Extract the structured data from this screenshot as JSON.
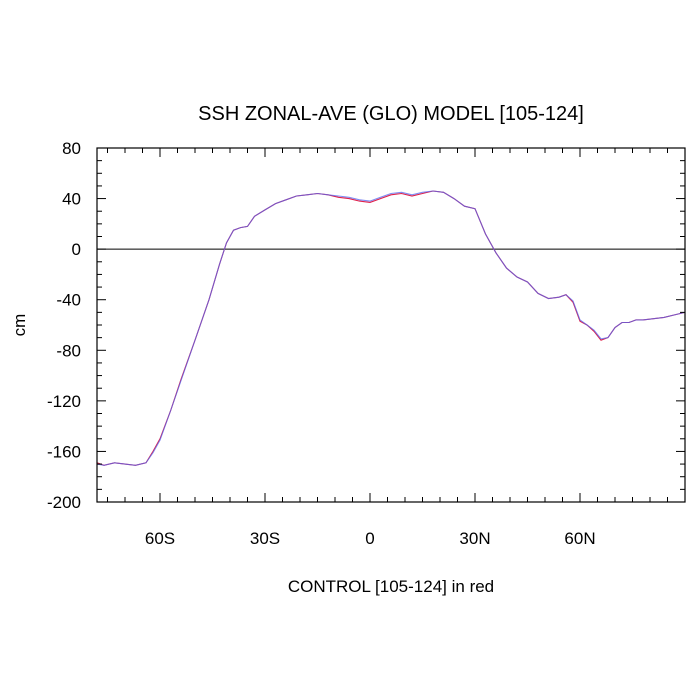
{
  "chart_data": {
    "type": "line",
    "title": "SSH ZONAL-AVE (GLO) MODEL [105-124]",
    "xlabel": "CONTROL [105-124] in red",
    "ylabel": "cm",
    "xlim": [
      -78,
      90
    ],
    "ylim": [
      -200,
      80
    ],
    "x_ticks": [
      {
        "value": -60,
        "label": "60S"
      },
      {
        "value": -30,
        "label": "30S"
      },
      {
        "value": 0,
        "label": "0"
      },
      {
        "value": 30,
        "label": "30N"
      },
      {
        "value": 60,
        "label": "60N"
      }
    ],
    "y_ticks": [
      {
        "value": 80,
        "label": "80"
      },
      {
        "value": 40,
        "label": "40"
      },
      {
        "value": 0,
        "label": "0"
      },
      {
        "value": -40,
        "label": "-40"
      },
      {
        "value": -80,
        "label": "-80"
      },
      {
        "value": -120,
        "label": "-120"
      },
      {
        "value": -160,
        "label": "-160"
      },
      {
        "value": -200,
        "label": "-200"
      }
    ],
    "zero_line": 0,
    "grid": false,
    "series": [
      {
        "color": "#e0204a",
        "x": [
          -78,
          -76,
          -73,
          -70,
          -67,
          -64,
          -62,
          -60,
          -57,
          -54,
          -50,
          -46,
          -43,
          -41,
          -39,
          -37,
          -35,
          -33,
          -30,
          -27,
          -24,
          -21,
          -18,
          -15,
          -12,
          -9,
          -6,
          -3,
          0,
          3,
          6,
          9,
          12,
          15,
          18,
          21,
          24,
          27,
          30,
          33,
          36,
          39,
          42,
          45,
          48,
          51,
          54,
          56,
          58,
          60,
          62,
          64,
          66,
          68,
          70,
          72,
          74,
          76,
          78,
          81,
          84,
          87,
          90
        ],
        "y": [
          -169,
          -171,
          -169,
          -170,
          -171,
          -169,
          -160,
          -150,
          -128,
          -103,
          -72,
          -40,
          -12,
          5,
          15,
          17,
          18,
          26,
          31,
          36,
          39,
          42,
          43,
          44,
          43,
          41,
          40,
          38,
          37,
          40,
          43,
          44,
          42,
          44,
          46,
          45,
          40,
          34,
          32,
          12,
          -3,
          -15,
          -22,
          -26,
          -35,
          -39,
          -38,
          -36,
          -42,
          -57,
          -60,
          -65,
          -72,
          -70,
          -62,
          -58,
          -58,
          -56,
          -56,
          -55,
          -54,
          -52,
          -50
        ]
      },
      {
        "color": "#5566ee",
        "x": [
          -78,
          -76,
          -73,
          -70,
          -67,
          -64,
          -62,
          -60,
          -57,
          -54,
          -50,
          -46,
          -43,
          -41,
          -39,
          -37,
          -35,
          -33,
          -30,
          -27,
          -24,
          -21,
          -18,
          -15,
          -12,
          -9,
          -6,
          -3,
          0,
          3,
          6,
          9,
          12,
          15,
          18,
          21,
          24,
          27,
          30,
          33,
          36,
          39,
          42,
          45,
          48,
          51,
          54,
          56,
          58,
          60,
          62,
          64,
          66,
          68,
          70,
          72,
          74,
          76,
          78,
          81,
          84,
          87,
          90
        ],
        "y": [
          -170,
          -171,
          -169,
          -170,
          -171,
          -169,
          -161,
          -151,
          -128,
          -104,
          -72,
          -40,
          -12,
          5,
          15,
          17,
          18,
          26,
          31,
          36,
          39,
          42,
          43,
          44,
          43,
          42,
          41,
          39,
          38,
          41,
          44,
          45,
          43,
          45,
          46,
          45,
          40,
          34,
          32,
          12,
          -3,
          -15,
          -22,
          -26,
          -35,
          -39,
          -38,
          -36,
          -41,
          -56,
          -60,
          -64,
          -71,
          -70,
          -62,
          -58,
          -58,
          -56,
          -56,
          -55,
          -54,
          -52,
          -50
        ]
      }
    ]
  }
}
